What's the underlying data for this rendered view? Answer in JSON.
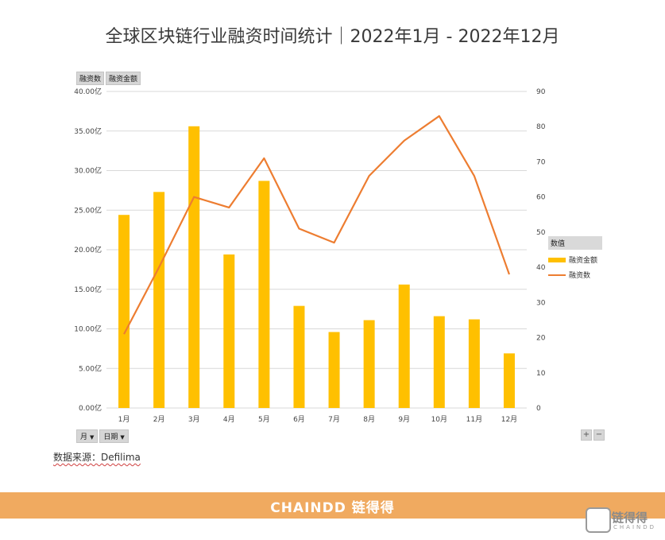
{
  "title": "全球区块链行业融资时间统计｜2022年1月 - 2022年12月",
  "pivot_buttons": [
    "融资数",
    "融资金额"
  ],
  "filter_buttons": [
    "月",
    "日期"
  ],
  "zoom_buttons": [
    "+",
    "−"
  ],
  "source": "数据来源：Defilima",
  "footer": {
    "logo": "CHAINDD 链得得",
    "watermark": "链得得",
    "watermark_sub": "CHAINDD"
  },
  "legend": {
    "header": "数值",
    "items": [
      "融资金额",
      "融资数"
    ]
  },
  "colors": {
    "bar": "#ffc000",
    "line": "#ed7d31",
    "grid": "#d9d9d9",
    "footer": "#f0aa60"
  },
  "chart_data": {
    "type": "bar",
    "categories": [
      "1月",
      "2月",
      "3月",
      "4月",
      "5月",
      "6月",
      "7月",
      "8月",
      "9月",
      "10月",
      "11月",
      "12月"
    ],
    "series": [
      {
        "name": "融资金额",
        "type": "bar",
        "axis": "left",
        "values": [
          24.4,
          27.3,
          35.6,
          19.4,
          28.7,
          12.9,
          9.6,
          11.1,
          15.6,
          11.6,
          11.2,
          6.9
        ]
      },
      {
        "name": "融资数",
        "type": "line",
        "axis": "right",
        "values": [
          21,
          40,
          60,
          57,
          71,
          51,
          47,
          66,
          76,
          83,
          66,
          38
        ]
      }
    ],
    "y_left": {
      "ticks": [
        "0.00亿",
        "5.00亿",
        "10.00亿",
        "15.00亿",
        "20.00亿",
        "25.00亿",
        "30.00亿",
        "35.00亿",
        "40.00亿"
      ],
      "lim": [
        0,
        40
      ]
    },
    "y_right": {
      "ticks": [
        "0",
        "10",
        "20",
        "30",
        "40",
        "50",
        "60",
        "70",
        "80",
        "90"
      ],
      "lim": [
        0,
        90
      ]
    },
    "grid": true,
    "legend_position": "right"
  }
}
